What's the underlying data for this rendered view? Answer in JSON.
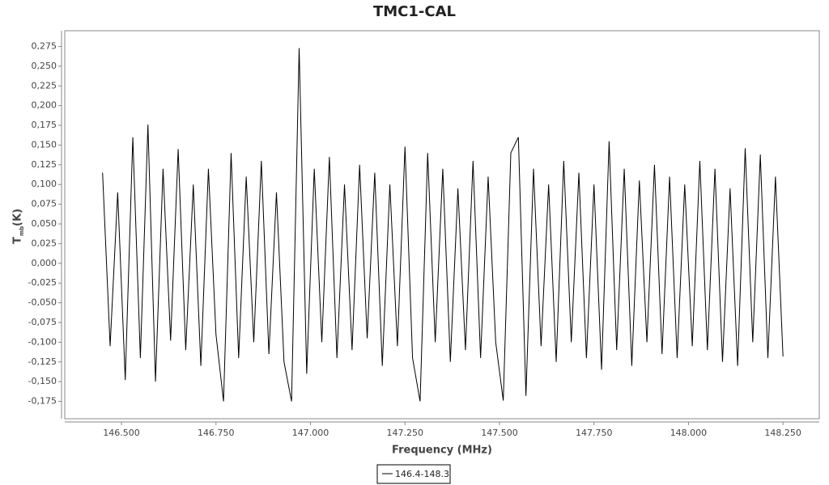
{
  "chart_data": {
    "type": "line",
    "title": "TMC1-CAL",
    "x_label": "Frequency (MHz)",
    "y_label": {
      "main": "T",
      "sub": "mb",
      "unit": "(K)"
    },
    "x": [
      146.45,
      146.47,
      146.49,
      146.51,
      146.53,
      146.55,
      146.57,
      146.59,
      146.61,
      146.63,
      146.65,
      146.67,
      146.69,
      146.71,
      146.73,
      146.75,
      146.77,
      146.79,
      146.81,
      146.83,
      146.85,
      146.87,
      146.89,
      146.91,
      146.93,
      146.95,
      146.97,
      146.99,
      147.01,
      147.03,
      147.05,
      147.07,
      147.09,
      147.11,
      147.13,
      147.15,
      147.17,
      147.19,
      147.21,
      147.23,
      147.25,
      147.27,
      147.29,
      147.31,
      147.33,
      147.35,
      147.37,
      147.39,
      147.41,
      147.43,
      147.45,
      147.47,
      147.49,
      147.51,
      147.53,
      147.55,
      147.57,
      147.59,
      147.61,
      147.63,
      147.65,
      147.67,
      147.69,
      147.71,
      147.73,
      147.75,
      147.77,
      147.79,
      147.81,
      147.83,
      147.85,
      147.87,
      147.89,
      147.91,
      147.93,
      147.95,
      147.97,
      147.99,
      148.01,
      148.03,
      148.05,
      148.07,
      148.09,
      148.11,
      148.13,
      148.15,
      148.17,
      148.19,
      148.21,
      148.23,
      148.25
    ],
    "series": [
      {
        "name": "146.4-148.3",
        "color": "#000000",
        "values": [
          0.115,
          -0.105,
          0.09,
          -0.148,
          0.16,
          -0.12,
          0.176,
          -0.15,
          0.12,
          -0.098,
          0.145,
          -0.11,
          0.1,
          -0.13,
          0.12,
          -0.09,
          -0.175,
          0.14,
          -0.12,
          0.11,
          -0.1,
          0.13,
          -0.115,
          0.09,
          -0.125,
          -0.175,
          0.273,
          -0.14,
          0.12,
          -0.1,
          0.135,
          -0.12,
          0.1,
          -0.11,
          0.125,
          -0.095,
          0.115,
          -0.13,
          0.1,
          -0.105,
          0.148,
          -0.12,
          -0.175,
          0.14,
          -0.1,
          0.12,
          -0.125,
          0.095,
          -0.11,
          0.13,
          -0.12,
          0.11,
          -0.1,
          -0.174,
          0.14,
          0.16,
          -0.168,
          0.12,
          -0.105,
          0.1,
          -0.125,
          0.13,
          -0.1,
          0.115,
          -0.12,
          0.1,
          -0.135,
          0.155,
          -0.11,
          0.12,
          -0.13,
          0.105,
          -0.1,
          0.125,
          -0.115,
          0.11,
          -0.12,
          0.1,
          -0.105,
          0.13,
          -0.11,
          0.12,
          -0.125,
          0.095,
          -0.13,
          0.146,
          -0.1,
          0.138,
          -0.12,
          0.11,
          -0.118
        ]
      }
    ],
    "xlim": [
      146.35,
      148.346
    ],
    "ylim": [
      -0.197,
      0.295
    ],
    "xticks": [
      {
        "value": 146.5,
        "label": "146.500"
      },
      {
        "value": 146.75,
        "label": "146.750"
      },
      {
        "value": 147,
        "label": "147.000"
      },
      {
        "value": 147.25,
        "label": "147.250"
      },
      {
        "value": 147.5,
        "label": "147.500"
      },
      {
        "value": 147.75,
        "label": "147.750"
      },
      {
        "value": 148,
        "label": "148.000"
      },
      {
        "value": 148.25,
        "label": "148.250"
      }
    ],
    "yticks": [
      {
        "value": -0.175,
        "label": "-0,175"
      },
      {
        "value": -0.15,
        "label": "-0,150"
      },
      {
        "value": -0.125,
        "label": "-0,125"
      },
      {
        "value": -0.1,
        "label": "-0,100"
      },
      {
        "value": -0.075,
        "label": "-0,075"
      },
      {
        "value": -0.05,
        "label": "-0,050"
      },
      {
        "value": -0.025,
        "label": "-0,025"
      },
      {
        "value": 0,
        "label": "0,000"
      },
      {
        "value": 0.025,
        "label": "0,025"
      },
      {
        "value": 0.05,
        "label": "0,050"
      },
      {
        "value": 0.075,
        "label": "0,075"
      },
      {
        "value": 0.1,
        "label": "0,100"
      },
      {
        "value": 0.125,
        "label": "0,125"
      },
      {
        "value": 0.15,
        "label": "0,150"
      },
      {
        "value": 0.175,
        "label": "0,175"
      },
      {
        "value": 0.2,
        "label": "0,200"
      },
      {
        "value": 0.225,
        "label": "0,225"
      },
      {
        "value": 0.25,
        "label": "0,250"
      },
      {
        "value": 0.275,
        "label": "0,275"
      }
    ],
    "grid": false,
    "legend": "bottom"
  }
}
